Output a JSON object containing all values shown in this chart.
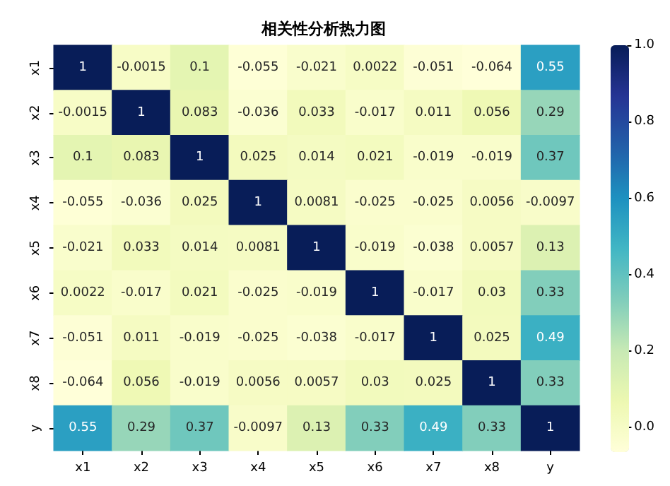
{
  "chart_data": {
    "type": "heatmap",
    "title": "相关性分析热力图",
    "categories": [
      "x1",
      "x2",
      "x3",
      "x4",
      "x5",
      "x6",
      "x7",
      "x8",
      "y"
    ],
    "y_categories": [
      "x1",
      "x2",
      "x3",
      "x4",
      "x5",
      "x6",
      "x7",
      "x8",
      "y"
    ],
    "cells": [
      [
        1,
        -0.0015,
        0.1,
        -0.055,
        -0.021,
        0.0022,
        -0.051,
        -0.064,
        0.55
      ],
      [
        -0.0015,
        1,
        0.083,
        -0.036,
        0.033,
        -0.017,
        0.011,
        0.056,
        0.29
      ],
      [
        0.1,
        0.083,
        1,
        0.025,
        0.014,
        0.021,
        -0.019,
        -0.019,
        0.37
      ],
      [
        -0.055,
        -0.036,
        0.025,
        1,
        0.0081,
        -0.025,
        -0.025,
        0.0056,
        -0.0097
      ],
      [
        -0.021,
        0.033,
        0.014,
        0.0081,
        1,
        -0.019,
        -0.038,
        0.0057,
        0.13
      ],
      [
        0.0022,
        -0.017,
        0.021,
        -0.025,
        -0.019,
        1,
        -0.017,
        0.03,
        0.33
      ],
      [
        -0.051,
        0.011,
        -0.019,
        -0.025,
        -0.038,
        -0.017,
        1,
        0.025,
        0.49
      ],
      [
        -0.064,
        0.056,
        -0.019,
        0.0056,
        0.0057,
        0.03,
        0.025,
        1,
        0.33
      ],
      [
        0.55,
        0.29,
        0.37,
        -0.0097,
        0.13,
        0.33,
        0.49,
        0.33,
        1
      ]
    ],
    "data_labels": true,
    "clim": [
      -0.064,
      1
    ],
    "cticks": [
      {
        "value": 0,
        "label": "0.0"
      },
      {
        "value": 0.2,
        "label": "0.2"
      },
      {
        "value": 0.4,
        "label": "0.4"
      },
      {
        "value": 0.6,
        "label": "0.6"
      },
      {
        "value": 0.8,
        "label": "0.8"
      },
      {
        "value": 1,
        "label": "1.0"
      }
    ]
  }
}
